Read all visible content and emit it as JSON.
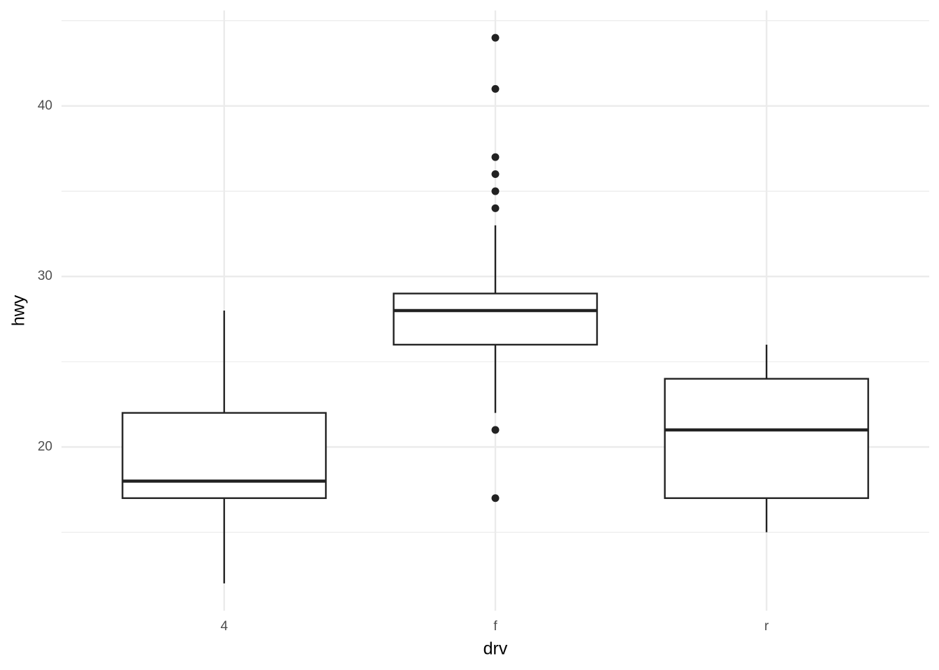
{
  "chart_data": {
    "type": "boxplot",
    "x_label": "drv",
    "y_label": "hwy",
    "categories": [
      "4",
      "f",
      "r"
    ],
    "boxes": [
      {
        "min": 12,
        "q1": 17,
        "median": 18,
        "q3": 22,
        "max": 28,
        "outliers": []
      },
      {
        "min": 22,
        "q1": 26,
        "median": 28,
        "q3": 29,
        "max": 33,
        "outliers": [
          44,
          41,
          37,
          36,
          35,
          34,
          21,
          17
        ]
      },
      {
        "min": 15,
        "q1": 17,
        "median": 21,
        "q3": 24,
        "max": 26,
        "outliers": []
      }
    ],
    "color": "#222222",
    "ylim": [
      10.4,
      45.6
    ],
    "yticks": [
      20,
      30,
      40
    ],
    "yminor": [
      15,
      25,
      35,
      45
    ],
    "grid": true
  }
}
